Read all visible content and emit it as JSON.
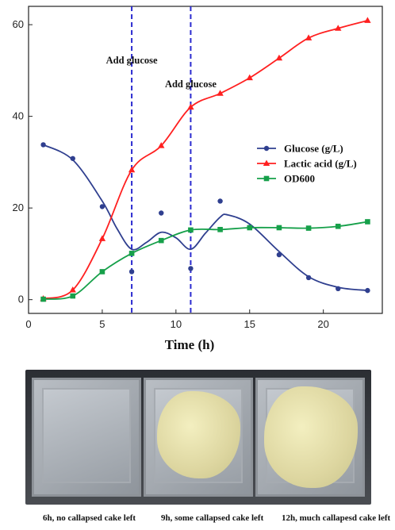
{
  "chart_data": {
    "type": "line",
    "xlabel": "Time (h)",
    "ylabel": "",
    "xlim": [
      0,
      24
    ],
    "ylim": [
      -3,
      64
    ],
    "x_ticks": [
      0,
      5,
      10,
      15,
      20
    ],
    "y_ticks": [
      0,
      20,
      40,
      60
    ],
    "grid": false,
    "legend_position": "right",
    "series": [
      {
        "name": "Glucose (g/L)",
        "color": "#2f3f8f",
        "marker": "circle",
        "x": [
          1,
          3,
          5,
          7,
          9,
          11,
          13,
          15,
          17,
          19,
          21,
          23
        ],
        "y": [
          33.8,
          30.8,
          20.3,
          6.1,
          18.9,
          6.8,
          21.5,
          15.8,
          9.8,
          4.8,
          2.4,
          2.0
        ]
      },
      {
        "name": "Lactic acid (g/L)",
        "color": "#ff2020",
        "marker": "triangle",
        "x": [
          1,
          3,
          5,
          7,
          9,
          11,
          13,
          15,
          17,
          19,
          21,
          23
        ],
        "y": [
          0.2,
          2.1,
          13.3,
          28.3,
          33.6,
          42.0,
          45.0,
          48.4,
          52.7,
          57.1,
          59.2,
          60.9
        ]
      },
      {
        "name": "OD600",
        "color": "#16a04a",
        "marker": "square",
        "x": [
          1,
          3,
          5,
          7,
          9,
          11,
          13,
          15,
          17,
          19,
          21,
          23
        ],
        "y": [
          0.1,
          0.8,
          6.1,
          10.1,
          12.9,
          15.2,
          15.3,
          15.7,
          15.7,
          15.6,
          16.0,
          17.0
        ]
      }
    ],
    "glucose_curve": {
      "x": [
        1,
        3,
        5,
        6,
        7,
        8,
        9,
        10,
        11,
        12,
        13,
        13.5,
        15,
        17,
        19,
        21,
        23
      ],
      "y": [
        33.8,
        30.5,
        21.5,
        15.5,
        11.0,
        12.5,
        14.7,
        13.5,
        11.0,
        14.5,
        18.0,
        18.5,
        16.5,
        10.5,
        5.0,
        2.7,
        2.0
      ]
    },
    "annotations": [
      {
        "text": "Add glucose",
        "x": 7,
        "y": 51.5
      },
      {
        "text": "Add glucose",
        "x": 11,
        "y": 46.3
      }
    ],
    "vlines": [
      7,
      11
    ]
  },
  "photo": {
    "captions": [
      "6h, no callapsed cake left",
      "9h, some callapsed cake left",
      "12h, much callapesd cake left"
    ]
  }
}
